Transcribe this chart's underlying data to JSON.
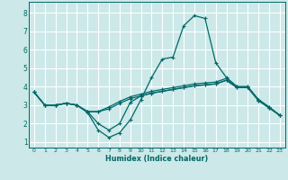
{
  "title": "",
  "xlabel": "Humidex (Indice chaleur)",
  "bg_color": "#cce8e8",
  "grid_color": "#ffffff",
  "line_color": "#006868",
  "xlim": [
    -0.5,
    23.5
  ],
  "ylim": [
    0.7,
    8.6
  ],
  "xticks": [
    0,
    1,
    2,
    3,
    4,
    5,
    6,
    7,
    8,
    9,
    10,
    11,
    12,
    13,
    14,
    15,
    16,
    17,
    18,
    19,
    20,
    21,
    22,
    23
  ],
  "yticks": [
    1,
    2,
    3,
    4,
    5,
    6,
    7,
    8
  ],
  "series": [
    [
      3.7,
      3.0,
      3.0,
      3.1,
      3.0,
      2.6,
      1.65,
      1.25,
      1.5,
      2.2,
      3.3,
      4.5,
      5.5,
      5.6,
      7.3,
      7.85,
      7.7,
      5.3,
      4.5,
      4.0,
      4.0,
      3.3,
      2.9,
      2.45
    ],
    [
      3.7,
      3.0,
      3.0,
      3.1,
      3.0,
      2.65,
      2.65,
      2.9,
      3.2,
      3.45,
      3.6,
      3.75,
      3.85,
      3.95,
      4.05,
      4.15,
      4.2,
      4.25,
      4.45,
      4.0,
      4.0,
      3.3,
      2.9,
      2.45
    ],
    [
      3.7,
      3.0,
      3.0,
      3.1,
      3.0,
      2.65,
      2.65,
      2.8,
      3.1,
      3.35,
      3.5,
      3.65,
      3.75,
      3.85,
      3.95,
      4.05,
      4.1,
      4.15,
      4.35,
      3.95,
      3.95,
      3.25,
      2.85,
      2.45
    ],
    [
      3.7,
      3.0,
      3.0,
      3.1,
      3.0,
      2.65,
      2.0,
      1.65,
      2.0,
      3.15,
      3.5,
      3.65,
      3.75,
      3.85,
      3.95,
      4.05,
      4.1,
      4.15,
      4.35,
      3.95,
      3.95,
      3.25,
      2.85,
      2.45
    ]
  ]
}
